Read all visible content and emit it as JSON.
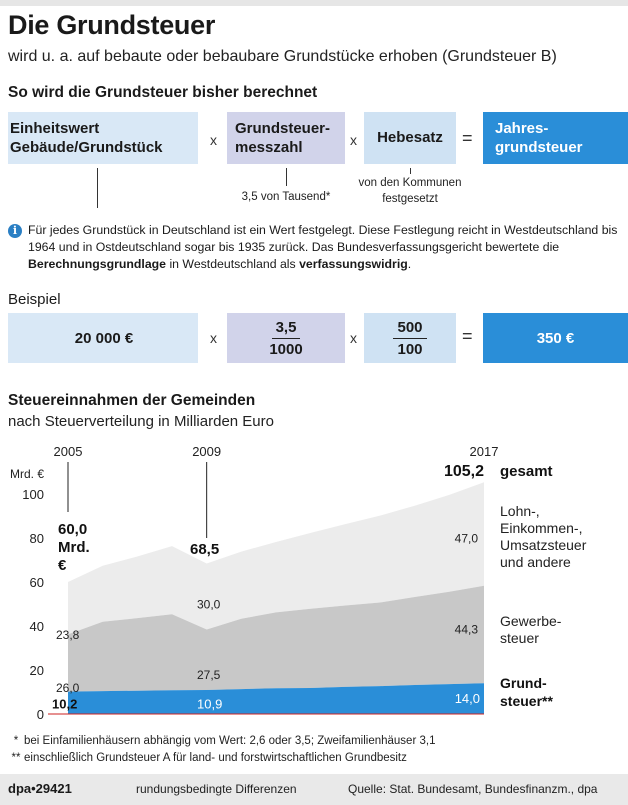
{
  "title": "Die Grundsteuer",
  "subtitle": "wird u. a. auf bebaute oder bebaubare Grundstücke erhoben (Grundsteuer B)",
  "formula": {
    "heading": "So wird die Grundsteuer bisher berechnet",
    "box1_line1": "Einheitswert",
    "box1_line2": "Gebäude/Grundstück",
    "box2_line1": "Grundsteuer-",
    "box2_line2": "messzahl",
    "box3": "Hebesatz",
    "box4_line1": "Jahres-",
    "box4_line2": "grundsteuer",
    "times": "x",
    "equals": "=",
    "note_messzahl": "3,5 von Tausend*",
    "note_hebesatz_line1": "von den Kommunen",
    "note_hebesatz_line2": "festgesetzt",
    "colors": {
      "light_blue": "#d9e8f6",
      "lavender": "#d1d3ea",
      "result_blue": "#2a8ed8"
    }
  },
  "info": {
    "icon": "info-icon",
    "text_part1": "Für jedes Grundstück in Deutschland ist ein Wert festgelegt. Diese Festlegung reicht in Westdeutschland bis 1964 und in Ostdeutschland sogar bis 1935 zurück. Das Bundesverfassungsgericht bewertete die ",
    "text_bold1": "Berechnungsgrundlage",
    "text_part2": " in Westdeutschland als ",
    "text_bold2": "verfassungswidrig",
    "text_part3": "."
  },
  "example": {
    "label": "Beispiel",
    "value1": "20 000 €",
    "frac1_num": "3,5",
    "frac1_den": "1000",
    "frac2_num": "500",
    "frac2_den": "100",
    "result": "350 €"
  },
  "chart_title": "Steuereinnahmen der Gemeinden",
  "chart_subtitle": "nach Steuerverteilung in Milliarden Euro",
  "chart_data": {
    "type": "area",
    "stacked": true,
    "ylabel": "Mrd. €",
    "ylim": [
      0,
      105
    ],
    "yticks": [
      0,
      20,
      40,
      60,
      80,
      100
    ],
    "x": [
      2005,
      2006,
      2007,
      2008,
      2009,
      2010,
      2011,
      2012,
      2013,
      2014,
      2015,
      2016,
      2017
    ],
    "x_marked": [
      "2005",
      "2009",
      "2017"
    ],
    "series": [
      {
        "name": "Grundsteuer**",
        "color": "#2a8ed8",
        "values": [
          10.2,
          10.4,
          10.6,
          10.8,
          10.9,
          11.3,
          11.7,
          11.8,
          12.3,
          12.7,
          13.2,
          13.6,
          14.0
        ]
      },
      {
        "name": "Gewerbesteuer",
        "color": "#c8c8c8",
        "values": [
          26.0,
          31.5,
          33.0,
          34.5,
          27.5,
          32.0,
          34.5,
          36.0,
          37.0,
          38.0,
          40.0,
          42.0,
          44.3
        ]
      },
      {
        "name": "Lohn-, Einkommen-, Umsatzsteuer und andere",
        "color": "#ececec",
        "values": [
          23.8,
          25.5,
          28.0,
          31.0,
          30.0,
          30.5,
          32.0,
          34.5,
          37.0,
          39.5,
          41.5,
          44.0,
          47.0
        ]
      }
    ],
    "totals": {
      "2005": "60,0",
      "2009": "68,5",
      "2017": "105,2"
    },
    "value_labels": {
      "grund": [
        "10,2",
        "10,9",
        "14,0"
      ],
      "gewerbe": [
        "26,0",
        "27,5",
        "44,3"
      ],
      "andere": [
        "23,8",
        "30,0",
        "47,0"
      ]
    },
    "total_2005_line1": "60,0",
    "total_2005_line2": "Mrd.",
    "total_2005_line3": "€",
    "total_2017_suffix": "gesamt",
    "legend": {
      "andere_l1": "Lohn-,",
      "andere_l2": "Einkommen-,",
      "andere_l3": "Umsatzsteuer",
      "andere_l4": "und andere",
      "gewerbe_l1": "Gewerbe-",
      "gewerbe_l2": "steuer",
      "grund_l1": "Grund-",
      "grund_l2": "steuer**"
    }
  },
  "footnotes": {
    "f1_mark": "*",
    "f1": "bei Einfamilienhäusern abhängig vom Wert: 2,6 oder 3,5; Zweifamilienhäuser 3,1",
    "f2_mark": "**",
    "f2": "einschließlich Grundsteuer A für land- und forstwirtschaftlichen Grundbesitz"
  },
  "footer": {
    "dpa": "dpa•29421",
    "note": "rundungsbedingte Differenzen",
    "source": "Quelle: Stat. Bundesamt, Bundesfinanzm., dpa"
  }
}
